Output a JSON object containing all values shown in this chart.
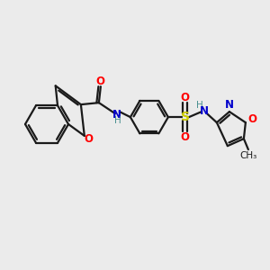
{
  "background_color": "#ebebeb",
  "bond_color": "#1a1a1a",
  "atom_colors": {
    "O": "#ff0000",
    "N": "#0000cc",
    "S": "#cccc00",
    "H": "#4a9090",
    "C": "#1a1a1a"
  },
  "figsize": [
    3.0,
    3.0
  ],
  "dpi": 100
}
